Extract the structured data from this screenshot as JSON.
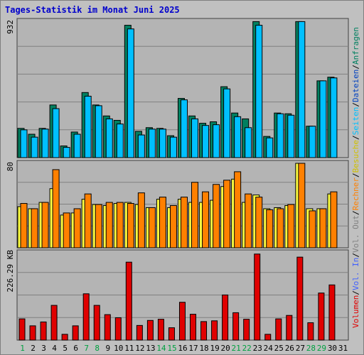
{
  "title": "Tages-Statistik im Monat Juni 2025",
  "colors": {
    "background": "#c0c0c0",
    "panel": "#b4b4b4",
    "grid": "#808080",
    "anfragen": "#008060",
    "dateien": "#0040c0",
    "seiten": "#00c0ff",
    "besuche": "#ffff40",
    "rechner": "#ff8000",
    "out": "#808080",
    "in": "#4060ff",
    "volumen": "#e00000",
    "weekend_label": "#00a040",
    "weekday_label": "#000000"
  },
  "right_labels": {
    "top": [
      "Anfragen",
      "/",
      "Dateien",
      "/",
      "Seiten",
      "/",
      "Besuche",
      "/",
      "Rechner",
      "/",
      "Vol. Out",
      "/",
      "Vol. In",
      "/",
      "Volumen"
    ],
    "top_colors": [
      "#008060",
      "#000000",
      "#0040c0",
      "#000000",
      "#00c0ff",
      "#000000",
      "#d0c000",
      "#000000",
      "#ff8000",
      "#000000",
      "#808080",
      "#000000",
      "#4060ff",
      "#000000",
      "#e00000"
    ]
  },
  "chart_data": [
    {
      "type": "bar",
      "panel": "top",
      "ymax_label": "932",
      "ymax": 932,
      "categories": [
        "1",
        "2",
        "3",
        "4",
        "5",
        "6",
        "7",
        "8",
        "9",
        "10",
        "11",
        "12",
        "13",
        "14",
        "15",
        "16",
        "17",
        "18",
        "19",
        "20",
        "21",
        "22",
        "23",
        "24",
        "25",
        "26",
        "27",
        "28",
        "29",
        "30",
        "31"
      ],
      "series": [
        {
          "name": "Anfragen",
          "values": [
            200,
            160,
            200,
            360,
            80,
            175,
            445,
            360,
            285,
            255,
            905,
            180,
            205,
            200,
            150,
            405,
            285,
            235,
            245,
            485,
            305,
            265,
            930,
            145,
            305,
            300,
            930,
            215,
            525,
            550,
            0
          ]
        },
        {
          "name": "Dateien",
          "values": [
            190,
            140,
            195,
            335,
            70,
            160,
            420,
            355,
            265,
            230,
            880,
            155,
            195,
            195,
            140,
            395,
            265,
            220,
            225,
            470,
            280,
            205,
            905,
            135,
            300,
            290,
            930,
            215,
            525,
            545,
            0
          ]
        },
        {
          "name": "Seiten",
          "values": [
            190,
            140,
            195,
            335,
            70,
            160,
            420,
            355,
            265,
            230,
            880,
            155,
            195,
            195,
            140,
            395,
            265,
            220,
            225,
            470,
            280,
            205,
            905,
            135,
            300,
            290,
            930,
            215,
            525,
            545,
            0
          ]
        }
      ]
    },
    {
      "type": "bar",
      "panel": "middle",
      "ymax_label": "80",
      "ymax": 80,
      "categories": [
        "1",
        "2",
        "3",
        "4",
        "5",
        "6",
        "7",
        "8",
        "9",
        "10",
        "11",
        "12",
        "13",
        "14",
        "15",
        "16",
        "17",
        "18",
        "19",
        "20",
        "21",
        "22",
        "23",
        "24",
        "25",
        "26",
        "27",
        "28",
        "29",
        "30",
        "31"
      ],
      "series": [
        {
          "name": "Besuche",
          "values": [
            39,
            37,
            43,
            56,
            31,
            33,
            46,
            41,
            40,
            42,
            43,
            41,
            38,
            46,
            38,
            46,
            43,
            43,
            45,
            58,
            65,
            43,
            50,
            37,
            38,
            40,
            80,
            37,
            37,
            51,
            0
          ]
        },
        {
          "name": "Rechner",
          "values": [
            42,
            37,
            43,
            74,
            33,
            37,
            51,
            41,
            43,
            43,
            42,
            52,
            38,
            48,
            40,
            48,
            62,
            53,
            60,
            64,
            72,
            51,
            48,
            36,
            37,
            41,
            80,
            35,
            37,
            53,
            0
          ]
        }
      ]
    },
    {
      "type": "bar",
      "panel": "bottom",
      "ymax_label": "226.29 KB",
      "ymax": 226.29,
      "categories": [
        "1",
        "2",
        "3",
        "4",
        "5",
        "6",
        "7",
        "8",
        "9",
        "10",
        "11",
        "12",
        "13",
        "14",
        "15",
        "16",
        "17",
        "18",
        "19",
        "20",
        "21",
        "22",
        "23",
        "24",
        "25",
        "26",
        "27",
        "28",
        "29",
        "30",
        "31"
      ],
      "series": [
        {
          "name": "Volumen",
          "values": [
            55,
            37,
            47,
            90,
            15,
            37,
            120,
            90,
            66,
            58,
            202,
            38,
            51,
            54,
            32,
            98,
            67,
            48,
            50,
            117,
            71,
            54,
            223,
            15,
            55,
            64,
            215,
            45,
            122,
            143,
            0
          ]
        }
      ]
    }
  ],
  "x_axis": {
    "labels": [
      "1",
      "2",
      "3",
      "4",
      "5",
      "6",
      "7",
      "8",
      "9",
      "10",
      "11",
      "12",
      "13",
      "14",
      "15",
      "16",
      "17",
      "18",
      "19",
      "20",
      "21",
      "22",
      "23",
      "24",
      "25",
      "26",
      "27",
      "28",
      "29",
      "30",
      "31"
    ],
    "weekend": [
      1,
      7,
      8,
      14,
      15,
      21,
      22,
      28,
      29
    ]
  }
}
